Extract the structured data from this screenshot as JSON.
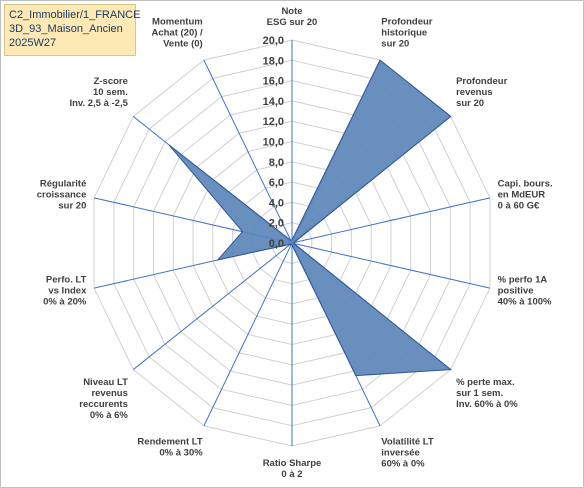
{
  "title_box": {
    "line1": "C2_Immobilier/1_FRANCE",
    "line2": "3D_93_Maison_Ancien",
    "line3": "2025W27"
  },
  "colors": {
    "fill": "#5b85b8",
    "stroke": "#2f5597",
    "grid": "#d0d0d0",
    "spoke": "#4472c4",
    "title_bg": "#fde9b4"
  },
  "chart_data": {
    "type": "radar",
    "rmin": 0,
    "rmax": 20,
    "tick_step": 2,
    "tick_labels": [
      "0,0",
      "2,0",
      "4,0",
      "6,0",
      "8,0",
      "10,0",
      "12,0",
      "14,0",
      "16,0",
      "18,0",
      "20,0"
    ],
    "axes": [
      {
        "label": [
          "Note",
          "ESG sur 20"
        ],
        "value": 0.3
      },
      {
        "label": [
          "Profondeur",
          "historique",
          "sur 20"
        ],
        "value": 20
      },
      {
        "label": [
          "Profondeur",
          "revenus",
          "sur 20"
        ],
        "value": 20
      },
      {
        "label": [
          "Capi. bours.",
          "en MdEUR",
          "0 à 60 G€"
        ],
        "value": 0.2
      },
      {
        "label": [
          "% perfo 1A",
          "positive",
          "40% à 100%"
        ],
        "value": 0.2
      },
      {
        "label": [
          "% perte max.",
          "sur 1 sem.",
          "Inv. 60% à 0%"
        ],
        "value": 20
      },
      {
        "label": [
          "Volatilité LT",
          "inversée",
          "60% à 0%"
        ],
        "value": 14.5
      },
      {
        "label": [
          "Ratio Sharpe",
          "0 à 2"
        ],
        "value": 0.2
      },
      {
        "label": [
          "Rendement LT",
          "0% à 30%"
        ],
        "value": 0.2
      },
      {
        "label": [
          "Niveau LT",
          "revenus",
          "reccurents",
          "0% à 6%"
        ],
        "value": 0.2
      },
      {
        "label": [
          "Perfo. LT",
          "vs Index",
          "0% à 20%"
        ],
        "value": 7.5
      },
      {
        "label": [
          "Régularité",
          "croissance",
          "sur 20"
        ],
        "value": 5
      },
      {
        "label": [
          "Z-score",
          "10 sem.",
          "Inv. 2,5 à -2,5"
        ],
        "value": 15.5
      },
      {
        "label": [
          "Momentum",
          "Achat (20) /",
          "Vente (0)"
        ],
        "value": 0.3
      }
    ]
  }
}
